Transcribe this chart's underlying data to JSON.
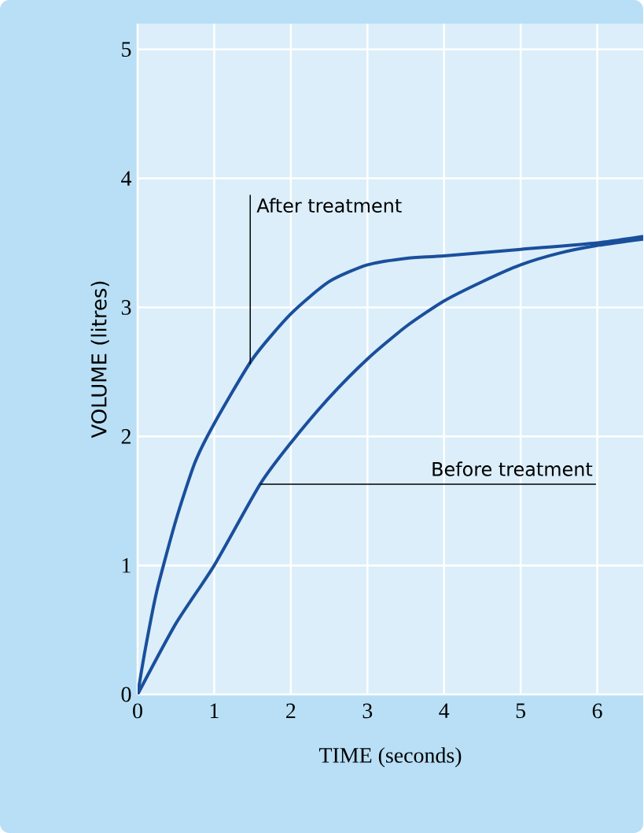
{
  "chart_data": {
    "type": "line",
    "xlabel": "TIME (seconds)",
    "ylabel": "VOLUME (litres)",
    "xlim": [
      0,
      6.6
    ],
    "ylim": [
      0,
      5.2
    ],
    "xticks": [
      0,
      1,
      2,
      3,
      4,
      5,
      6
    ],
    "yticks": [
      0,
      1,
      2,
      3,
      4,
      5
    ],
    "grid": true,
    "marker": "none",
    "line_style": "solid",
    "series": [
      {
        "color": "#1a4f9c",
        "x": [
          0,
          0.1,
          0.25,
          0.5,
          0.75,
          1.0,
          1.5,
          2.0,
          2.5,
          3.0,
          3.5,
          4.0,
          5.0,
          6.0,
          6.6
        ],
        "values": [
          0,
          0.35,
          0.8,
          1.35,
          1.8,
          2.1,
          2.6,
          2.95,
          3.2,
          3.33,
          3.38,
          3.4,
          3.45,
          3.5,
          3.55
        ]
      },
      {
        "color": "#1a4f9c",
        "x": [
          0,
          0.5,
          1.0,
          1.6,
          2.0,
          2.5,
          3.0,
          3.5,
          4.0,
          4.5,
          5.0,
          5.5,
          6.0,
          6.6
        ],
        "values": [
          0,
          0.55,
          1.0,
          1.63,
          1.95,
          2.3,
          2.6,
          2.85,
          3.05,
          3.2,
          3.33,
          3.42,
          3.48,
          3.53
        ]
      }
    ],
    "annotations": [
      {
        "text": "After treatment",
        "x": 1.47,
        "y": 2.56
      },
      {
        "text": "Before treatment",
        "x": 1.6,
        "y": 1.63
      }
    ]
  }
}
